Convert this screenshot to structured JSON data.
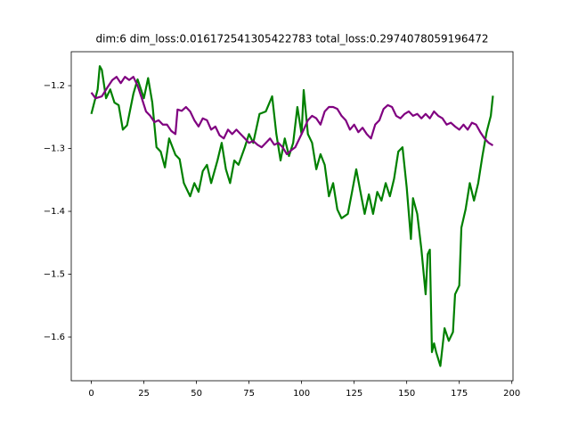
{
  "chart_data": {
    "type": "line",
    "title": "dim:6 dim_loss:0.016172541305422783 total_loss:0.2974078059196472",
    "xlim": [
      -9.55,
      200.55
    ],
    "xticks": [
      0,
      25,
      50,
      75,
      100,
      125,
      150,
      175,
      200
    ],
    "ylim": [
      -1.6695,
      -1.146
    ],
    "yticks": [
      {
        "value": -1.6,
        "label": "−1.6"
      },
      {
        "value": -1.5,
        "label": "−1.5"
      },
      {
        "value": -1.4,
        "label": "−1.4"
      },
      {
        "value": -1.3,
        "label": "−1.3"
      },
      {
        "value": -1.2,
        "label": "−1.2"
      }
    ],
    "grid": false,
    "series": [
      {
        "color": "#008000",
        "x": [
          0,
          3,
          4,
          5,
          7,
          9,
          11,
          13,
          15,
          17,
          20,
          22,
          25,
          27,
          29,
          31,
          33,
          35,
          37,
          40,
          42,
          44,
          47,
          49,
          51,
          53,
          55,
          57,
          60,
          62,
          64,
          66,
          68,
          70,
          73,
          75,
          77,
          80,
          83,
          86,
          88,
          90,
          92,
          94,
          96,
          98,
          100,
          101,
          103,
          105,
          107,
          109,
          111,
          113,
          115,
          117,
          119,
          122,
          124,
          126,
          128,
          130,
          132,
          134,
          136,
          138,
          140,
          142,
          144,
          146,
          148,
          150,
          152,
          153,
          155,
          157,
          159,
          160,
          161,
          162,
          163,
          164,
          166,
          168,
          170,
          172,
          173,
          175,
          176,
          178,
          180,
          182,
          184,
          186,
          188,
          190,
          191
        ],
        "values": [
          -1.245,
          -1.206,
          -1.169,
          -1.175,
          -1.22,
          -1.206,
          -1.227,
          -1.231,
          -1.27,
          -1.263,
          -1.213,
          -1.19,
          -1.22,
          -1.188,
          -1.227,
          -1.298,
          -1.305,
          -1.33,
          -1.284,
          -1.31,
          -1.317,
          -1.355,
          -1.376,
          -1.355,
          -1.369,
          -1.336,
          -1.326,
          -1.355,
          -1.319,
          -1.291,
          -1.333,
          -1.355,
          -1.319,
          -1.326,
          -1.298,
          -1.277,
          -1.291,
          -1.245,
          -1.241,
          -1.217,
          -1.277,
          -1.319,
          -1.284,
          -1.312,
          -1.291,
          -1.234,
          -1.277,
          -1.207,
          -1.277,
          -1.291,
          -1.333,
          -1.309,
          -1.326,
          -1.376,
          -1.355,
          -1.397,
          -1.411,
          -1.404,
          -1.369,
          -1.333,
          -1.369,
          -1.404,
          -1.373,
          -1.404,
          -1.369,
          -1.383,
          -1.355,
          -1.376,
          -1.348,
          -1.305,
          -1.298,
          -1.362,
          -1.444,
          -1.379,
          -1.404,
          -1.461,
          -1.532,
          -1.468,
          -1.461,
          -1.624,
          -1.61,
          -1.624,
          -1.646,
          -1.586,
          -1.606,
          -1.592,
          -1.532,
          -1.518,
          -1.426,
          -1.397,
          -1.355,
          -1.383,
          -1.355,
          -1.312,
          -1.274,
          -1.248,
          -1.216
        ]
      },
      {
        "color": "#800080",
        "x": [
          0,
          2,
          5,
          8,
          10,
          12,
          14,
          16,
          18,
          20,
          22,
          24,
          26,
          28,
          30,
          32,
          34,
          36,
          38,
          40,
          41,
          43,
          45,
          47,
          49,
          51,
          53,
          55,
          57,
          59,
          61,
          63,
          65,
          67,
          69,
          71,
          73,
          75,
          77,
          79,
          81,
          83,
          85,
          87,
          89,
          91,
          93,
          95,
          97,
          99,
          101,
          103,
          105,
          107,
          109,
          111,
          113,
          115,
          117,
          119,
          121,
          123,
          125,
          127,
          129,
          131,
          133,
          135,
          137,
          139,
          141,
          143,
          145,
          147,
          149,
          151,
          153,
          155,
          157,
          159,
          161,
          163,
          165,
          167,
          169,
          171,
          173,
          175,
          177,
          179,
          181,
          183,
          185,
          187,
          189,
          191
        ],
        "values": [
          -1.211,
          -1.22,
          -1.217,
          -1.201,
          -1.191,
          -1.186,
          -1.196,
          -1.186,
          -1.191,
          -1.186,
          -1.2,
          -1.22,
          -1.241,
          -1.248,
          -1.258,
          -1.255,
          -1.262,
          -1.262,
          -1.272,
          -1.277,
          -1.238,
          -1.24,
          -1.234,
          -1.241,
          -1.255,
          -1.265,
          -1.252,
          -1.255,
          -1.27,
          -1.265,
          -1.279,
          -1.284,
          -1.27,
          -1.277,
          -1.27,
          -1.277,
          -1.284,
          -1.291,
          -1.288,
          -1.294,
          -1.298,
          -1.291,
          -1.284,
          -1.294,
          -1.291,
          -1.298,
          -1.309,
          -1.303,
          -1.298,
          -1.284,
          -1.27,
          -1.255,
          -1.248,
          -1.252,
          -1.262,
          -1.241,
          -1.234,
          -1.234,
          -1.237,
          -1.248,
          -1.255,
          -1.27,
          -1.262,
          -1.274,
          -1.267,
          -1.277,
          -1.284,
          -1.262,
          -1.255,
          -1.237,
          -1.231,
          -1.234,
          -1.248,
          -1.252,
          -1.245,
          -1.241,
          -1.248,
          -1.245,
          -1.252,
          -1.245,
          -1.252,
          -1.241,
          -1.248,
          -1.252,
          -1.262,
          -1.259,
          -1.265,
          -1.27,
          -1.262,
          -1.27,
          -1.259,
          -1.262,
          -1.274,
          -1.284,
          -1.291,
          -1.295
        ]
      }
    ]
  }
}
